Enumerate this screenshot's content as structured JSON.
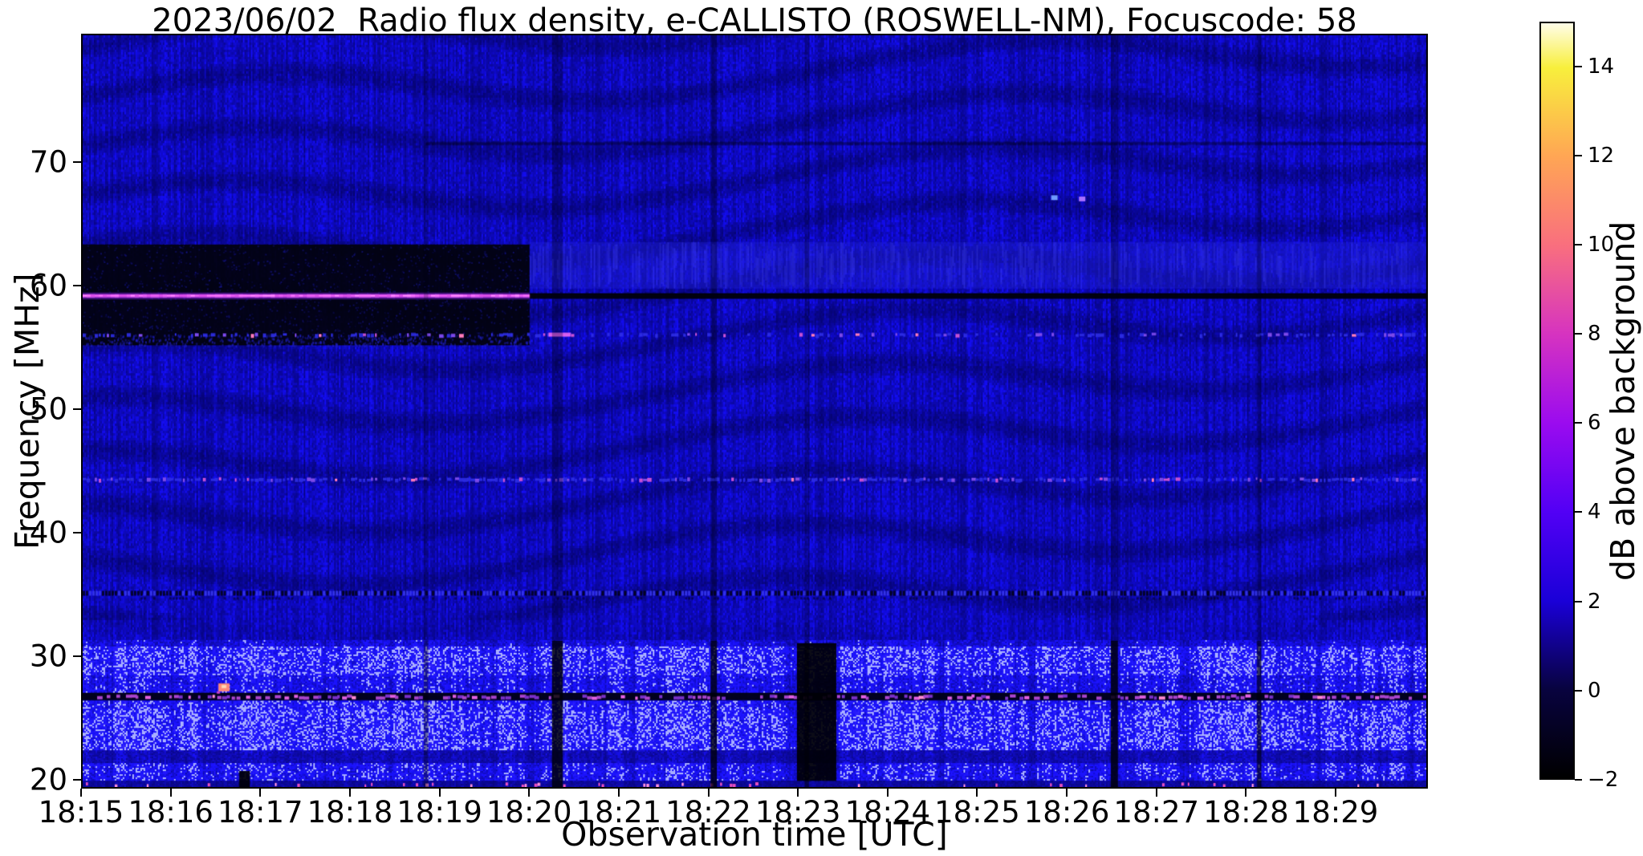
{
  "chart_data": {
    "type": "heatmap",
    "title": "2023/06/02  Radio flux density, e-CALLISTO (ROSWELL-NM), Focuscode: 58",
    "xlabel": "Observation time [UTC]",
    "ylabel": "Frequency [MHz]",
    "x_tick_labels": [
      "18:15",
      "18:16",
      "18:17",
      "18:18",
      "18:19",
      "18:20",
      "18:21",
      "18:22",
      "18:23",
      "18:24",
      "18:25",
      "18:26",
      "18:27",
      "18:28",
      "18:29"
    ],
    "x_tick_minutes": [
      0,
      1,
      2,
      3,
      4,
      5,
      6,
      7,
      8,
      9,
      10,
      11,
      12,
      13,
      14
    ],
    "x_range_minutes": [
      0,
      15.03
    ],
    "y_tick_labels": [
      "70",
      "60",
      "50",
      "40",
      "30",
      "20"
    ],
    "y_tick_values": [
      70,
      60,
      50,
      40,
      30,
      20
    ],
    "y_range_mhz": [
      19.3,
      80.4
    ],
    "grid": false,
    "colorbar": {
      "label": "dB above background",
      "tick_labels": [
        "14",
        "12",
        "10",
        "8",
        "6",
        "4",
        "2",
        "0",
        "−2"
      ],
      "tick_values": [
        14,
        12,
        10,
        8,
        6,
        4,
        2,
        0,
        -2
      ],
      "range_db": [
        -2,
        15
      ],
      "colormap_stops": [
        {
          "v": -2,
          "c": "#000000"
        },
        {
          "v": 0,
          "c": "#08033f"
        },
        {
          "v": 2,
          "c": "#1a00d8"
        },
        {
          "v": 4,
          "c": "#5200f5"
        },
        {
          "v": 6,
          "c": "#9b0bef"
        },
        {
          "v": 8,
          "c": "#d633c0"
        },
        {
          "v": 10,
          "c": "#f96f7e"
        },
        {
          "v": 12,
          "c": "#ffa654"
        },
        {
          "v": 14,
          "c": "#f8ef3c"
        },
        {
          "v": 15,
          "c": "#fffde8"
        }
      ]
    },
    "features": [
      {
        "type": "active_band",
        "f0": 19.3,
        "f1": 31.2,
        "desc": "enhanced broadband noise 20-31 MHz with vertical striations"
      },
      {
        "type": "rfi_channel",
        "f": 26.7,
        "desc": "dark RFI channel with magenta bursts near 27 MHz"
      },
      {
        "type": "bottom_dashes",
        "f": 19.5,
        "desc": "pink interference dashes along bottom edge"
      },
      {
        "type": "quiet_band",
        "t0": 0.0,
        "t1": 5.0,
        "f0": 55.2,
        "f1": 63.4,
        "desc": "dark quiet band before 18:20"
      },
      {
        "type": "enhanced_band",
        "t0": 5.0,
        "t1": 15.03,
        "f0": 59.8,
        "f1": 63.6,
        "desc": "brighter blue band after 18:20"
      },
      {
        "type": "speckle_line",
        "f": 56.1,
        "t0": 0.0,
        "t1": 15.03,
        "density": 0.42
      },
      {
        "type": "bright_dash",
        "f": 56.1,
        "t0": 5.21,
        "t1": 5.46
      },
      {
        "type": "speckle_line",
        "f": 44.35,
        "t0": 0.0,
        "t1": 15.03,
        "density": 0.8
      },
      {
        "type": "dotted_line",
        "f": 35.05,
        "t0": 0.0,
        "t1": 15.03
      },
      {
        "type": "faint_dark_line",
        "f": 71.6,
        "t0": 3.84,
        "t1": 15.03
      },
      {
        "type": "rfi_line_bright",
        "f": 59.25,
        "t0": 0.0,
        "t1": 5.0,
        "desc": "strong magenta carrier at 59.25 MHz until 18:20"
      },
      {
        "type": "rfi_line_dark",
        "f": 59.25,
        "t0": 5.0,
        "t1": 15.03,
        "desc": "carrier drops below background after 18:20"
      },
      {
        "type": "vline",
        "t": 3.84,
        "w_min": 0.05,
        "alpha_top": 0.22,
        "alpha_bottom": 0.4
      },
      {
        "type": "vline",
        "t": 5.31,
        "w_min": 0.12,
        "alpha_top": 0.3,
        "alpha_bottom": 0.85
      },
      {
        "type": "vline",
        "t": 7.06,
        "w_min": 0.07,
        "alpha_top": 0.3,
        "alpha_bottom": 0.8
      },
      {
        "type": "vline",
        "t": 8.1,
        "w_min": 0.05,
        "alpha_top": 0.3,
        "alpha_bottom": 0.5
      },
      {
        "type": "vline",
        "t": 11.54,
        "w_min": 0.08,
        "alpha_top": 0.28,
        "alpha_bottom": 0.85
      },
      {
        "type": "vline",
        "t": 13.16,
        "w_min": 0.05,
        "alpha_top": 0.25,
        "alpha_bottom": 0.65
      },
      {
        "type": "blackout",
        "t0": 7.99,
        "t1": 8.43,
        "f0": 19.8,
        "f1": 31.0
      },
      {
        "type": "blackout",
        "t0": 1.75,
        "t1": 1.87,
        "f0": 19.3,
        "f1": 20.6
      },
      {
        "type": "blob",
        "t": 1.58,
        "f": 27.4,
        "color": "#ff8878"
      },
      {
        "type": "dot",
        "t": 10.87,
        "f": 67.2,
        "color": "#6f9aff"
      },
      {
        "type": "dot",
        "t": 11.18,
        "f": 67.1,
        "color": "#aa70ff"
      }
    ]
  }
}
